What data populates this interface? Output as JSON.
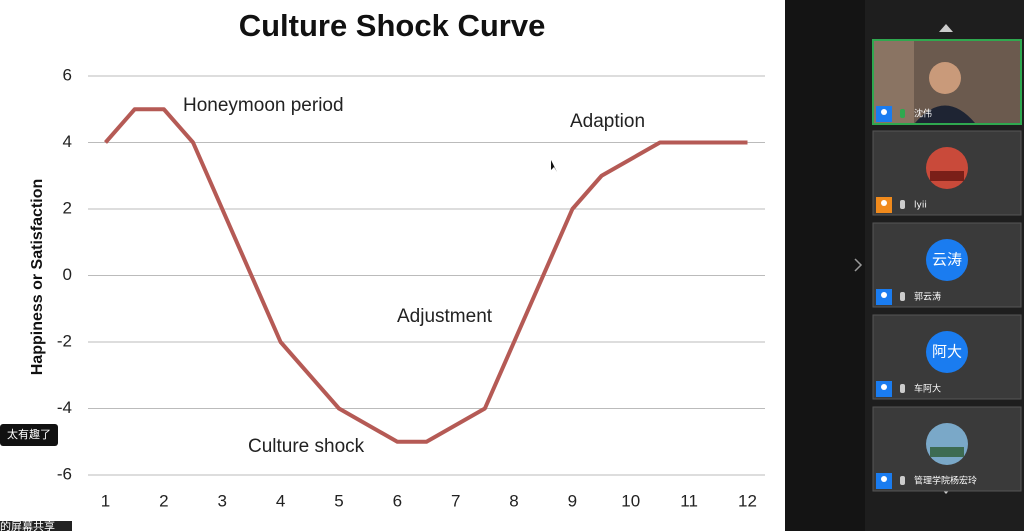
{
  "chart_data": {
    "type": "line",
    "title": "Culture Shock Curve",
    "y_label": "Happiness or Satisfaction",
    "x": [
      1,
      1.5,
      2,
      2.5,
      4,
      5,
      6,
      6.5,
      7.5,
      8,
      9,
      9.5,
      10.5,
      11,
      12
    ],
    "values": [
      4,
      5,
      5,
      4,
      -2,
      -4,
      -5,
      -5,
      -4,
      -2,
      2,
      3,
      4,
      4,
      4
    ],
    "color": "#b55a55",
    "xlim": [
      0.7,
      12.3
    ],
    "xticks": [
      1,
      2,
      3,
      4,
      5,
      6,
      7,
      8,
      9,
      10,
      11,
      12
    ],
    "ylim": [
      -6,
      6
    ],
    "yticks": [
      -6,
      -4,
      -2,
      0,
      2,
      4,
      6
    ],
    "grid": true,
    "annotations": [
      "Honeymoon period",
      "Adaption",
      "Adjustment",
      "Culture shock"
    ]
  },
  "participants": [
    {
      "name": "沈伟"
    },
    {
      "name": "lyii"
    },
    {
      "name": "郭云涛",
      "avatar": "云涛"
    },
    {
      "name": "车阿大",
      "avatar": "阿大"
    },
    {
      "name": "管理学院杨宏玲"
    }
  ],
  "chat_bubble": "太有趣了",
  "share_label": "的屏幕共享"
}
